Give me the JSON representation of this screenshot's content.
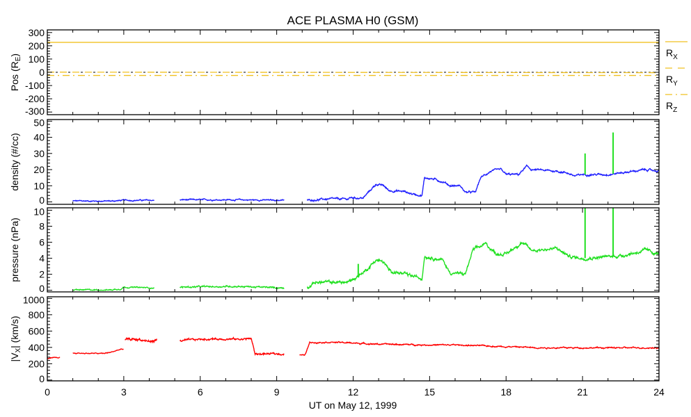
{
  "chart_data": {
    "type": "line",
    "title": "ACE PLASMA H0 (GSM)",
    "xlabel": "UT on May 12, 1999",
    "xlim": [
      0,
      24
    ],
    "x_ticks": [
      "0",
      "3",
      "6",
      "9",
      "12",
      "15",
      "18",
      "21",
      "24"
    ],
    "colors": {
      "pos": "#f0c020",
      "density": "#2020ff",
      "pressure": "#20e020",
      "vx": "#ff0000"
    },
    "panels": [
      {
        "id": "pos",
        "ylabel": "Pos (R",
        "ylabel_sub": "E",
        "ylabel_end": ")",
        "ylim": [
          -320,
          320
        ],
        "y_ticks": [
          300,
          200,
          100,
          0,
          -100,
          -200,
          -300
        ],
        "y_tick_labels": [
          "300",
          "200",
          "100",
          "0",
          "-100",
          "-200",
          "-300"
        ],
        "legend": [
          {
            "label": "R",
            "sub": "X",
            "style": "solid"
          },
          {
            "label": "R",
            "sub": "Y",
            "style": "dashed"
          },
          {
            "label": "R",
            "sub": "Z",
            "style": "dashdot"
          }
        ],
        "series": [
          {
            "name": "Rx",
            "style": "solid",
            "values": [
              [
                0,
                226
              ],
              [
                24,
                226
              ]
            ]
          },
          {
            "name": "Ry",
            "style": "dashed",
            "values": [
              [
                0,
                1
              ],
              [
                24,
                -3
              ]
            ]
          },
          {
            "name": "Rz",
            "style": "dashdot",
            "values": [
              [
                0,
                -24
              ],
              [
                24,
                -24
              ]
            ]
          }
        ]
      },
      {
        "id": "density",
        "ylabel": "density (#/cc)",
        "ylim": [
          -1.5,
          51
        ],
        "y_ticks": [
          0,
          10,
          20,
          30,
          40,
          50
        ],
        "y_tick_labels": [
          "0",
          "10",
          "20",
          "30",
          "40",
          "50"
        ],
        "segments": [
          {
            "noise": 0.4,
            "values": [
              [
                1.0,
                0.6
              ],
              [
                2.5,
                0.5
              ],
              [
                3.0,
                1.0
              ],
              [
                4.2,
                1.0
              ]
            ]
          },
          {
            "noise": 0.4,
            "values": [
              [
                5.2,
                1.3
              ],
              [
                7.5,
                1.3
              ],
              [
                9.3,
                1.0
              ]
            ]
          },
          {
            "noise": 0.6,
            "values": [
              [
                10.2,
                1.0
              ],
              [
                11.0,
                1.8
              ],
              [
                11.8,
                1.8
              ],
              [
                11.9,
                2.6
              ],
              [
                12.4,
                2.4
              ],
              [
                12.6,
                6
              ],
              [
                12.9,
                11
              ],
              [
                13.2,
                10
              ],
              [
                13.4,
                7
              ],
              [
                14.0,
                6.5
              ],
              [
                14.3,
                5
              ],
              [
                14.7,
                4
              ],
              [
                14.8,
                15
              ],
              [
                15.2,
                14
              ],
              [
                15.6,
                12
              ],
              [
                15.8,
                10
              ],
              [
                16.2,
                10
              ],
              [
                16.4,
                6
              ],
              [
                16.8,
                6
              ],
              [
                17.0,
                15
              ],
              [
                17.4,
                19
              ],
              [
                17.8,
                20
              ],
              [
                18.0,
                17
              ],
              [
                18.5,
                17
              ],
              [
                18.8,
                22
              ],
              [
                19.0,
                20
              ],
              [
                20.0,
                19
              ],
              [
                20.4,
                18
              ],
              [
                20.7,
                16
              ],
              [
                21.0,
                17
              ],
              [
                22.0,
                17
              ],
              [
                22.5,
                18
              ],
              [
                23.5,
                20
              ],
              [
                24,
                19
              ]
            ]
          }
        ],
        "spikes": [
          [
            21.1,
            30
          ],
          [
            22.2,
            43
          ]
        ]
      },
      {
        "id": "pressure",
        "ylabel": "pressure (nPa)",
        "ylim": [
          -0.2,
          10.3
        ],
        "y_ticks": [
          0,
          2,
          4,
          6,
          8,
          10
        ],
        "y_tick_labels": [
          "0",
          "2",
          "4",
          "6",
          "8",
          "10"
        ],
        "segments": [
          {
            "noise": 0.08,
            "values": [
              [
                1.0,
                0.05
              ],
              [
                2.5,
                0.05
              ],
              [
                2.9,
                0.2
              ],
              [
                3.0,
                0.4
              ],
              [
                4.2,
                0.3
              ]
            ]
          },
          {
            "noise": 0.1,
            "values": [
              [
                5.2,
                0.4
              ],
              [
                7.5,
                0.5
              ],
              [
                8.2,
                0.4
              ],
              [
                9.3,
                0.3
              ]
            ]
          },
          {
            "noise": 0.2,
            "values": [
              [
                10.2,
                0.3
              ],
              [
                10.5,
                1.0
              ],
              [
                11.8,
                1.0
              ],
              [
                12.2,
                1.8
              ],
              [
                12.5,
                2.5
              ],
              [
                12.9,
                3.8
              ],
              [
                13.2,
                3.5
              ],
              [
                13.4,
                2.5
              ],
              [
                14.0,
                2.0
              ],
              [
                14.7,
                1.5
              ],
              [
                14.8,
                4.3
              ],
              [
                15.5,
                3.8
              ],
              [
                15.8,
                2.2
              ],
              [
                16.4,
                2.0
              ],
              [
                16.7,
                5.0
              ],
              [
                17.2,
                5.8
              ],
              [
                17.6,
                4.6
              ],
              [
                18.0,
                4.5
              ],
              [
                18.6,
                6.0
              ],
              [
                19.0,
                5.0
              ],
              [
                20.0,
                5.2
              ],
              [
                20.5,
                4.2
              ],
              [
                21.0,
                4.0
              ],
              [
                22.0,
                4.2
              ],
              [
                22.5,
                4.3
              ],
              [
                23.5,
                5.0
              ],
              [
                24,
                4.5
              ]
            ]
          }
        ],
        "spikes": [
          [
            21.1,
            11.5
          ],
          [
            22.2,
            11.5
          ],
          [
            12.2,
            3.3
          ]
        ]
      },
      {
        "id": "vx",
        "ylabel": "|V",
        "ylabel_sub": "X",
        "ylabel_end": "| (km/s)",
        "ylim": [
          -10,
          1020
        ],
        "y_ticks": [
          0,
          200,
          400,
          600,
          800,
          1000
        ],
        "y_tick_labels": [
          "0",
          "200",
          "400",
          "600",
          "800",
          "1000"
        ],
        "segments": [
          {
            "noise": 6,
            "values": [
              [
                0,
                265
              ],
              [
                0.5,
                275
              ]
            ]
          },
          {
            "noise": 6,
            "values": [
              [
                1.0,
                330
              ],
              [
                2.2,
                325
              ],
              [
                2.5,
                340
              ],
              [
                2.8,
                370
              ],
              [
                3.0,
                380
              ]
            ]
          },
          {
            "noise": 18,
            "values": [
              [
                3.05,
                490
              ],
              [
                3.6,
                500
              ],
              [
                4.0,
                470
              ],
              [
                4.3,
                490
              ]
            ]
          },
          {
            "noise": 12,
            "values": [
              [
                5.2,
                480
              ],
              [
                6.0,
                500
              ],
              [
                7.0,
                505
              ],
              [
                7.5,
                500
              ],
              [
                8.0,
                510
              ],
              [
                8.15,
                320
              ],
              [
                9.3,
                320
              ]
            ]
          },
          {
            "noise": 8,
            "values": [
              [
                9.9,
                310
              ],
              [
                10.1,
                300
              ],
              [
                10.3,
                460
              ],
              [
                11.0,
                465
              ],
              [
                11.5,
                460
              ],
              [
                13.0,
                440
              ],
              [
                15.0,
                430
              ],
              [
                16.0,
                430
              ],
              [
                17.0,
                420
              ],
              [
                18.5,
                405
              ],
              [
                19.5,
                395
              ],
              [
                24,
                395
              ]
            ]
          }
        ]
      }
    ]
  }
}
